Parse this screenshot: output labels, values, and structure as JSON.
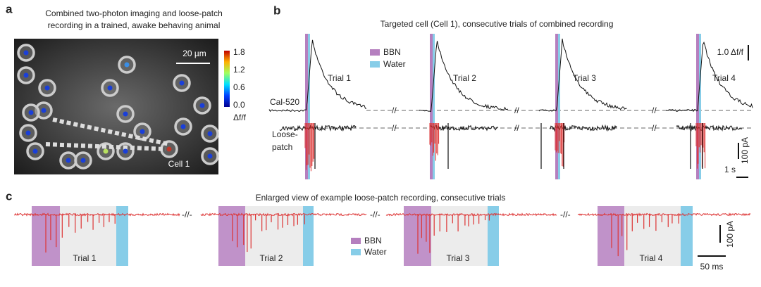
{
  "panel_a": {
    "letter": "a",
    "title_lines": [
      "Combined two-photon imaging and loose-patch",
      "recording in a trained, awake behaving animal"
    ],
    "scale_bar": "20 µm",
    "colorbar_ticks": [
      "1.8",
      "1.2",
      "0.6",
      "0.0"
    ],
    "colorbar_label": "Δf/f",
    "cell_label": "Cell 1"
  },
  "panel_b": {
    "letter": "b",
    "title": "Targeted cell (Cell 1), consecutive trials of combined recording",
    "legend": [
      "BBN",
      "Water"
    ],
    "trials": [
      "Trial 1",
      "Trial 2",
      "Trial 3",
      "Trial 4"
    ],
    "calcium_label": "Cal-520",
    "patch_label": [
      "Loose-",
      "patch"
    ],
    "scale_dff": "1.0 Δf/f",
    "scale_current": "100 pA",
    "scale_time": "1 s"
  },
  "panel_c": {
    "letter": "c",
    "title": "Enlarged view of example loose-patch recording, consecutive trials",
    "legend": [
      "BBN",
      "Water"
    ],
    "trials": [
      "Trial 1",
      "Trial 2",
      "Trial 3",
      "Trial 4"
    ],
    "scale_current": "100 pA",
    "scale_time": "50 ms"
  }
}
